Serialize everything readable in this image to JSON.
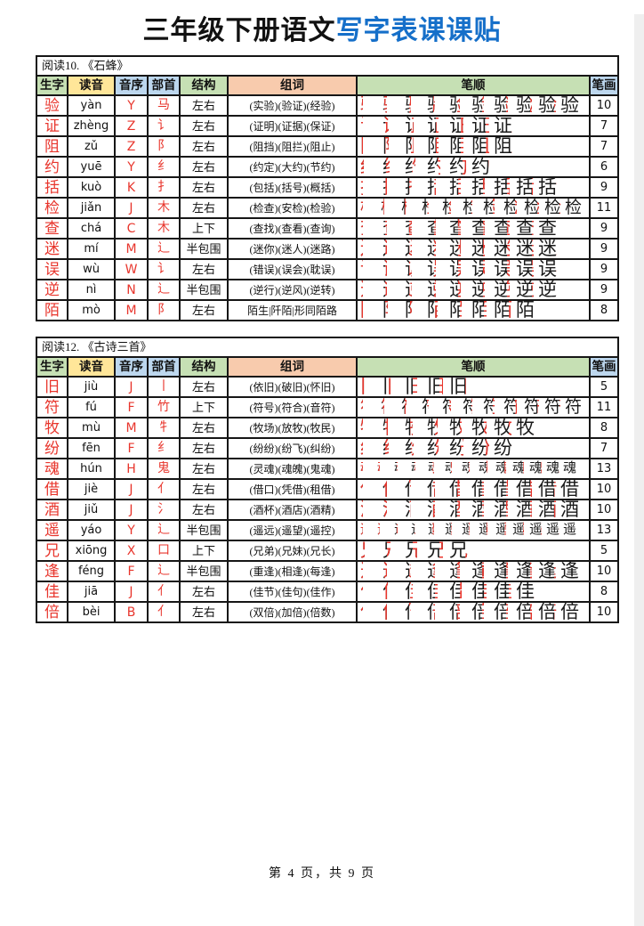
{
  "title": {
    "black_part": "三年级下册语文",
    "blue_part": "写字表课课贴"
  },
  "columns": [
    "生字",
    "读音",
    "音序",
    "部首",
    "结构",
    "组词",
    "笔顺",
    "笔画"
  ],
  "tables": [
    {
      "section": "阅读10. 《石蜂》",
      "rows": [
        {
          "char": "验",
          "pinyin": "yàn",
          "initial": "Y",
          "radical": "马",
          "structure": "左右",
          "words": "(实验)(验证)(经验)",
          "strokes": 10
        },
        {
          "char": "证",
          "pinyin": "zhèng",
          "initial": "Z",
          "radical": "讠",
          "structure": "左右",
          "words": "(证明)(证据)(保证)",
          "strokes": 7
        },
        {
          "char": "阻",
          "pinyin": "zǔ",
          "initial": "Z",
          "radical": "阝",
          "structure": "左右",
          "words": "(阻挡)(阻拦)(阻止)",
          "strokes": 7
        },
        {
          "char": "约",
          "pinyin": "yuē",
          "initial": "Y",
          "radical": "纟",
          "structure": "左右",
          "words": "(约定)(大约)(节约)",
          "strokes": 6
        },
        {
          "char": "括",
          "pinyin": "kuò",
          "initial": "K",
          "radical": "扌",
          "structure": "左右",
          "words": "(包括)(括号)(概括)",
          "strokes": 9
        },
        {
          "char": "检",
          "pinyin": "jiǎn",
          "initial": "J",
          "radical": "木",
          "structure": "左右",
          "words": "(检查)(安检)(检验)",
          "strokes": 11
        },
        {
          "char": "查",
          "pinyin": "chá",
          "initial": "C",
          "radical": "木",
          "structure": "上下",
          "words": "(查找)(查看)(查询)",
          "strokes": 9
        },
        {
          "char": "迷",
          "pinyin": "mí",
          "initial": "M",
          "radical": "辶",
          "structure": "半包围",
          "words": "(迷你)(迷人)(迷路)",
          "strokes": 9
        },
        {
          "char": "误",
          "pinyin": "wù",
          "initial": "W",
          "radical": "讠",
          "structure": "左右",
          "words": "(错误)(误会)(耽误)",
          "strokes": 9
        },
        {
          "char": "逆",
          "pinyin": "nì",
          "initial": "N",
          "radical": "辶",
          "structure": "半包围",
          "words": "(逆行)(逆风)(逆转)",
          "strokes": 9
        },
        {
          "char": "陌",
          "pinyin": "mò",
          "initial": "M",
          "radical": "阝",
          "structure": "左右",
          "words": "陌生|阡陌|形同陌路",
          "strokes": 8
        }
      ]
    },
    {
      "section": "阅读12. 《古诗三首》",
      "rows": [
        {
          "char": "旧",
          "pinyin": "jiù",
          "initial": "J",
          "radical": "丨",
          "structure": "左右",
          "words": "(依旧)(破旧)(怀旧)",
          "strokes": 5
        },
        {
          "char": "符",
          "pinyin": "fú",
          "initial": "F",
          "radical": "竹",
          "structure": "上下",
          "words": "(符号)(符合)(音符)",
          "strokes": 11
        },
        {
          "char": "牧",
          "pinyin": "mù",
          "initial": "M",
          "radical": "牜",
          "structure": "左右",
          "words": "(牧场)(放牧)(牧民)",
          "strokes": 8
        },
        {
          "char": "纷",
          "pinyin": "fēn",
          "initial": "F",
          "radical": "纟",
          "structure": "左右",
          "words": "(纷纷)(纷飞)(纠纷)",
          "strokes": 7
        },
        {
          "char": "魂",
          "pinyin": "hún",
          "initial": "H",
          "radical": "鬼",
          "structure": "左右",
          "words": "(灵魂)(魂魄)(鬼魂)",
          "strokes": 13
        },
        {
          "char": "借",
          "pinyin": "jiè",
          "initial": "J",
          "radical": "亻",
          "structure": "左右",
          "words": "(借口)(凭借)(租借)",
          "strokes": 10
        },
        {
          "char": "酒",
          "pinyin": "jiǔ",
          "initial": "J",
          "radical": "氵",
          "structure": "左右",
          "words": "(酒杯)(酒店)(酒精)",
          "strokes": 10
        },
        {
          "char": "遥",
          "pinyin": "yáo",
          "initial": "Y",
          "radical": "辶",
          "structure": "半包围",
          "words": "(遥远)(遥望)(遥控)",
          "strokes": 13
        },
        {
          "char": "兄",
          "pinyin": "xiōng",
          "initial": "X",
          "radical": "口",
          "structure": "上下",
          "words": "(兄弟)(兄妹)(兄长)",
          "strokes": 5
        },
        {
          "char": "逢",
          "pinyin": "féng",
          "initial": "F",
          "radical": "辶",
          "structure": "半包围",
          "words": "(重逢)(相逢)(每逢)",
          "strokes": 10
        },
        {
          "char": "佳",
          "pinyin": "jiā",
          "initial": "J",
          "radical": "亻",
          "structure": "左右",
          "words": "(佳节)(佳句)(佳作)",
          "strokes": 8
        },
        {
          "char": "倍",
          "pinyin": "bèi",
          "initial": "B",
          "radical": "亻",
          "structure": "左右",
          "words": "(双倍)(加倍)(倍数)",
          "strokes": 10
        }
      ]
    }
  ],
  "footer": "第 4 页，共 9 页",
  "colors": {
    "title_blue": "#156fc9",
    "char_red": "#e8352c",
    "header_green": "#c6e0b4",
    "header_yellow": "#ffe699",
    "header_blue": "#bdd7ee",
    "header_peach": "#f8cbad"
  }
}
